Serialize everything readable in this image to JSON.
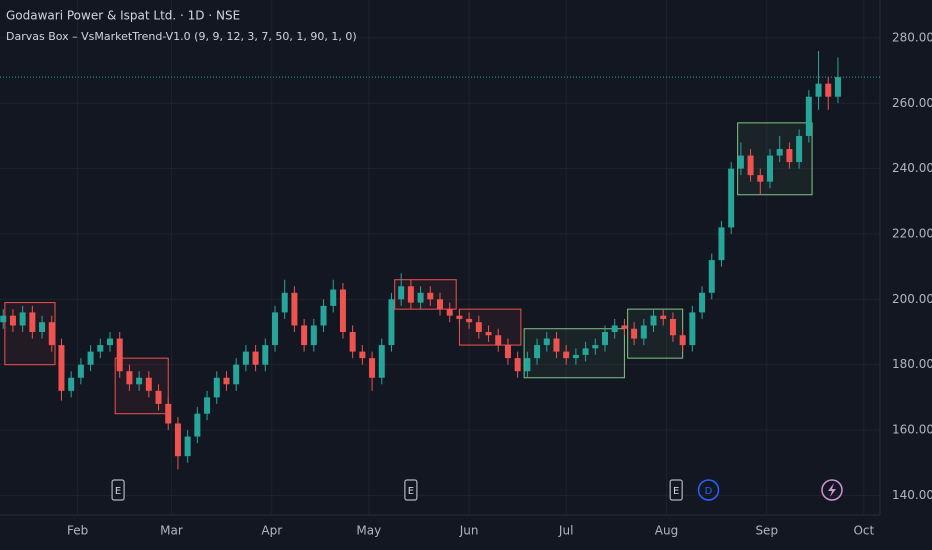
{
  "chart_data": {
    "type": "candlestick",
    "title": "Godawari Power & Ispat Ltd. · 1D · NSE",
    "subtitle": "Darvas Box – VsMarketTrend-V1.0 (9, 9, 12, 3, 7, 50, 1, 90, 1, 0)",
    "up_color": "#26a69a",
    "down_color": "#ef5350",
    "grid": true,
    "xlim": [
      8,
      280
    ],
    "ylim": [
      134,
      291.6
    ],
    "xticks": [
      {
        "value": 32,
        "label": "Feb"
      },
      {
        "value": 61,
        "label": "Mar"
      },
      {
        "value": 92,
        "label": "Apr"
      },
      {
        "value": 122,
        "label": "May"
      },
      {
        "value": 153,
        "label": "Jun"
      },
      {
        "value": 183,
        "label": "Jul"
      },
      {
        "value": 214,
        "label": "Aug"
      },
      {
        "value": 245,
        "label": "Sep"
      },
      {
        "value": 275,
        "label": "Oct"
      }
    ],
    "yticks": [
      {
        "value": 140,
        "label": "140.00"
      },
      {
        "value": 160,
        "label": "160.00"
      },
      {
        "value": 180,
        "label": "180.00"
      },
      {
        "value": 200,
        "label": "200.00"
      },
      {
        "value": 220,
        "label": "220.00"
      },
      {
        "value": 240,
        "label": "240.00"
      },
      {
        "value": 260,
        "label": "260.00"
      },
      {
        "value": 280,
        "label": "280.00"
      }
    ],
    "x": [
      9,
      12,
      15,
      18,
      21,
      24,
      27,
      30,
      33,
      36,
      39,
      42,
      45,
      48,
      51,
      54,
      57,
      60,
      63,
      66,
      69,
      72,
      75,
      78,
      81,
      84,
      87,
      90,
      93,
      96,
      99,
      102,
      105,
      108,
      111,
      114,
      117,
      120,
      123,
      126,
      129,
      132,
      135,
      138,
      141,
      144,
      147,
      150,
      153,
      156,
      159,
      162,
      165,
      168,
      171,
      174,
      177,
      180,
      183,
      186,
      189,
      192,
      195,
      198,
      201,
      204,
      207,
      210,
      213,
      216,
      219,
      222,
      225,
      228,
      231,
      234,
      237,
      240,
      243,
      246,
      249,
      252,
      255,
      258,
      261,
      264,
      267
    ],
    "open": [
      193,
      195,
      192,
      196,
      190,
      193,
      186,
      172,
      176,
      180,
      184,
      186,
      188,
      178,
      174,
      176,
      172,
      168,
      162,
      152,
      158,
      165,
      170,
      176,
      174,
      180,
      184,
      180,
      186,
      196,
      202,
      192,
      186,
      192,
      198,
      203,
      190,
      184,
      182,
      176,
      186,
      200,
      204,
      199,
      202,
      200,
      197,
      195,
      194,
      193,
      190,
      189,
      186,
      182,
      178,
      182,
      186,
      188,
      184,
      182,
      183,
      185,
      186,
      190,
      192,
      191,
      188,
      192,
      195,
      194,
      189,
      186,
      196,
      202,
      212,
      222,
      240,
      244,
      238,
      236,
      244,
      246,
      242,
      250,
      262,
      266,
      262
    ],
    "high": [
      197,
      197,
      198,
      198,
      195,
      195,
      188,
      178,
      182,
      186,
      188,
      190,
      190,
      180,
      178,
      178,
      174,
      170,
      164,
      160,
      167,
      172,
      178,
      178,
      182,
      186,
      186,
      188,
      198,
      206,
      204,
      194,
      194,
      200,
      206,
      205,
      192,
      186,
      184,
      188,
      202,
      208,
      206,
      204,
      204,
      202,
      199,
      197,
      196,
      195,
      192,
      191,
      188,
      184,
      184,
      188,
      190,
      190,
      186,
      185,
      187,
      188,
      192,
      194,
      194,
      193,
      194,
      197,
      197,
      196,
      191,
      198,
      204,
      214,
      224,
      242,
      248,
      246,
      240,
      246,
      250,
      248,
      252,
      264,
      276,
      268,
      274
    ],
    "low": [
      191,
      190,
      190,
      188,
      188,
      184,
      169,
      170,
      174,
      178,
      182,
      184,
      176,
      172,
      172,
      170,
      166,
      160,
      148,
      150,
      156,
      163,
      168,
      172,
      172,
      178,
      178,
      178,
      184,
      194,
      190,
      184,
      184,
      190,
      196,
      188,
      182,
      180,
      172,
      174,
      184,
      198,
      197,
      197,
      198,
      195,
      193,
      192,
      191,
      188,
      187,
      184,
      180,
      176,
      176,
      180,
      184,
      182,
      180,
      180,
      181,
      183,
      184,
      188,
      189,
      186,
      186,
      190,
      192,
      187,
      184,
      184,
      194,
      200,
      210,
      220,
      238,
      236,
      232,
      234,
      242,
      240,
      240,
      248,
      258,
      258,
      260
    ],
    "close": [
      195,
      192,
      196,
      190,
      193,
      186,
      172,
      176,
      180,
      184,
      186,
      188,
      178,
      174,
      176,
      172,
      168,
      162,
      152,
      158,
      165,
      170,
      176,
      174,
      180,
      184,
      180,
      186,
      196,
      202,
      192,
      186,
      192,
      198,
      203,
      190,
      184,
      182,
      176,
      186,
      200,
      204,
      199,
      202,
      200,
      197,
      195,
      194,
      193,
      190,
      189,
      186,
      182,
      178,
      182,
      186,
      188,
      184,
      182,
      183,
      185,
      186,
      190,
      192,
      191,
      188,
      192,
      195,
      194,
      189,
      186,
      196,
      202,
      212,
      222,
      240,
      244,
      238,
      236,
      244,
      246,
      242,
      250,
      262,
      266,
      262,
      268
    ],
    "boxes": [
      {
        "x": [
          9.5,
          25
        ],
        "y": [
          180,
          199
        ],
        "color": "#ef5350"
      },
      {
        "x": [
          43.6,
          60
        ],
        "y": [
          165,
          182
        ],
        "color": "#ef5350"
      },
      {
        "x": [
          130,
          149
        ],
        "y": [
          197,
          206
        ],
        "color": "#ef5350"
      },
      {
        "x": [
          150,
          169
        ],
        "y": [
          186,
          197
        ],
        "color": "#ef5350"
      },
      {
        "x": [
          170,
          201
        ],
        "y": [
          176,
          191
        ],
        "color": "#81c784"
      },
      {
        "x": [
          202,
          219
        ],
        "y": [
          182,
          197
        ],
        "color": "#81c784"
      },
      {
        "x": [
          236,
          259
        ],
        "y": [
          232,
          254
        ],
        "color": "#81c784"
      }
    ],
    "events": [
      {
        "x": 44.5,
        "label": "E"
      },
      {
        "x": 135,
        "label": "E"
      },
      {
        "x": 217,
        "label": "E"
      },
      {
        "x": 227,
        "label": "D"
      }
    ]
  }
}
